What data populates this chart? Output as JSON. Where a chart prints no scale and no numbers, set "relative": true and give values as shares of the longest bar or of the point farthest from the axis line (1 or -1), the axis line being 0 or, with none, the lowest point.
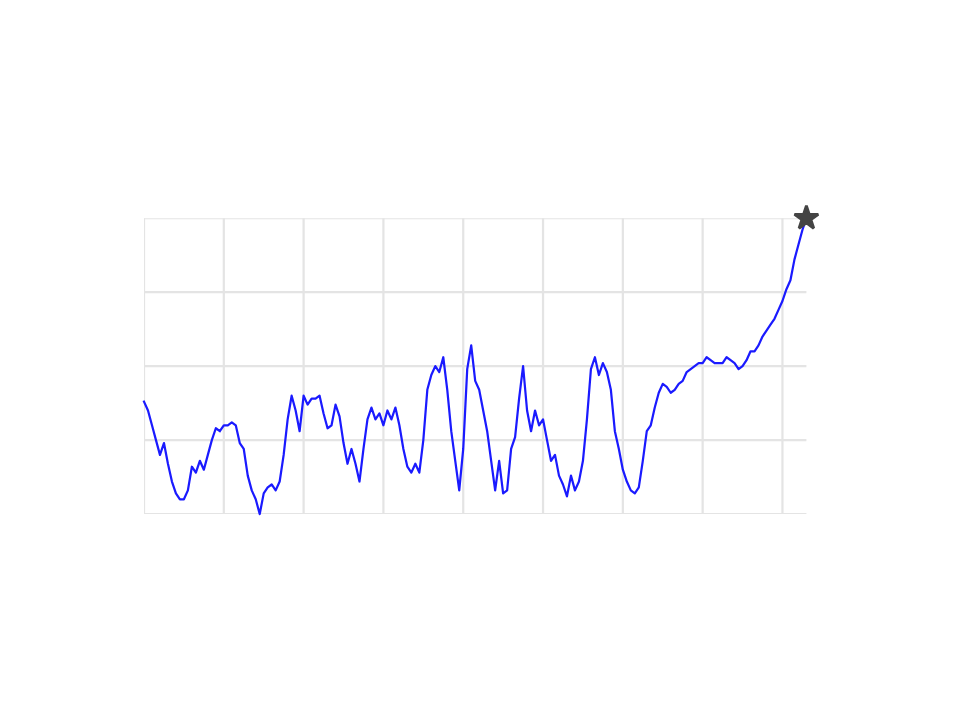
{
  "chart_data": {
    "type": "line",
    "relative": true,
    "grid": true,
    "line_style": "solid",
    "categories": [
      null,
      null,
      null,
      null,
      null,
      null,
      null,
      null,
      null,
      null,
      null,
      null,
      null,
      null,
      null,
      null,
      null,
      null,
      null,
      null,
      null,
      null,
      null,
      null,
      null,
      null,
      null,
      null,
      null,
      null,
      null,
      null,
      null,
      null,
      null,
      null,
      null,
      null,
      null,
      null,
      null,
      null,
      null,
      null,
      null,
      null,
      null,
      null,
      null,
      null,
      null,
      null,
      null,
      null,
      null,
      null,
      null,
      null,
      null,
      null,
      null,
      null,
      null,
      null,
      null,
      null,
      null,
      null,
      null,
      null,
      null,
      null,
      null,
      null,
      null,
      null,
      null,
      null,
      null,
      null,
      null,
      null,
      null,
      null,
      null,
      null,
      null,
      null,
      null,
      null,
      null,
      null,
      null,
      null,
      null,
      null,
      null,
      null,
      null,
      null,
      null,
      null,
      null,
      null,
      null,
      null,
      null,
      null,
      null,
      null,
      null,
      null,
      null,
      null,
      null,
      null,
      null,
      null,
      null,
      null,
      null,
      null,
      null,
      null,
      null,
      null,
      null,
      null,
      null,
      null,
      null,
      null,
      null,
      null,
      null,
      null,
      null,
      null,
      null,
      null,
      null,
      null,
      null,
      null,
      null,
      null,
      null,
      null,
      null,
      null,
      null,
      null,
      null,
      null,
      null,
      null,
      null,
      null,
      null,
      null,
      null,
      null,
      null,
      null,
      null,
      null,
      null
    ],
    "series": [
      {
        "color": "#1a1aff",
        "values": [
          0.38,
          0.35,
          0.3,
          0.25,
          0.2,
          0.24,
          0.17,
          0.11,
          0.07,
          0.05,
          0.05,
          0.08,
          0.16,
          0.14,
          0.18,
          0.15,
          0.2,
          0.25,
          0.29,
          0.28,
          0.3,
          0.3,
          0.31,
          0.3,
          0.24,
          0.22,
          0.13,
          0.08,
          0.05,
          0,
          0.07,
          0.09,
          0.1,
          0.08,
          0.11,
          0.2,
          0.32,
          0.4,
          0.35,
          0.28,
          0.4,
          0.37,
          0.39,
          0.39,
          0.4,
          0.34,
          0.29,
          0.3,
          0.37,
          0.33,
          0.24,
          0.17,
          0.22,
          0.17,
          0.11,
          0.22,
          0.32,
          0.36,
          0.32,
          0.34,
          0.3,
          0.35,
          0.32,
          0.36,
          0.3,
          0.22,
          0.16,
          0.14,
          0.17,
          0.14,
          0.25,
          0.42,
          0.47,
          0.5,
          0.48,
          0.53,
          0.42,
          0.28,
          0.18,
          0.08,
          0.22,
          0.49,
          0.57,
          0.45,
          0.42,
          0.35,
          0.28,
          0.18,
          0.08,
          0.18,
          0.07,
          0.08,
          0.22,
          0.26,
          0.39,
          0.5,
          0.35,
          0.28,
          0.35,
          0.3,
          0.32,
          0.25,
          0.18,
          0.2,
          0.13,
          0.1,
          0.06,
          0.13,
          0.08,
          0.11,
          0.18,
          0.32,
          0.49,
          0.53,
          0.47,
          0.51,
          0.48,
          0.42,
          0.28,
          0.22,
          0.15,
          0.11,
          0.08,
          0.07,
          0.09,
          0.18,
          0.28,
          0.3,
          0.36,
          0.41,
          0.44,
          0.43,
          0.41,
          0.42,
          0.44,
          0.45,
          0.48,
          0.49,
          0.5,
          0.51,
          0.51,
          0.53,
          0.52,
          0.51,
          0.51,
          0.51,
          0.53,
          0.52,
          0.51,
          0.49,
          0.5,
          0.52,
          0.55,
          0.55,
          0.57,
          0.6,
          0.62,
          0.64,
          0.66,
          0.69,
          0.72,
          0.76,
          0.79,
          0.86,
          0.91,
          0.96,
          1
        ]
      }
    ]
  }
}
